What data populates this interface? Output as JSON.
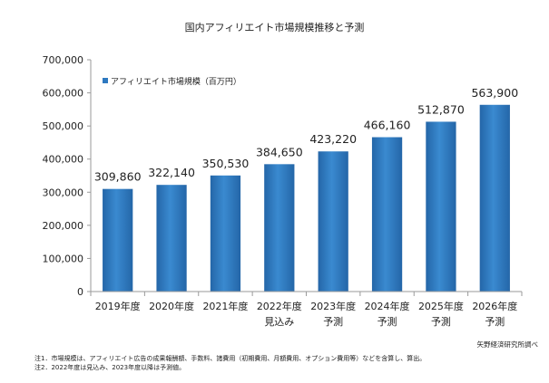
{
  "chart_data": {
    "type": "bar",
    "title": "国内アフィリエイト市場規模推移と予測",
    "series": [
      {
        "name": "アフィリエイト市場規模（百万円）",
        "values": [
          309860,
          322140,
          350530,
          384650,
          423220,
          466160,
          512870,
          563900
        ],
        "color": "#2e79c0"
      }
    ],
    "categories": [
      {
        "line1": "2019年度",
        "line2": ""
      },
      {
        "line1": "2020年度",
        "line2": ""
      },
      {
        "line1": "2021年度",
        "line2": ""
      },
      {
        "line1": "2022年度",
        "line2": "見込み"
      },
      {
        "line1": "2023年度",
        "line2": "予測"
      },
      {
        "line1": "2024年度",
        "line2": "予測"
      },
      {
        "line1": "2025年度",
        "line2": "予測"
      },
      {
        "line1": "2026年度",
        "line2": "予測"
      }
    ],
    "data_labels": [
      "309,860",
      "322,140",
      "350,530",
      "384,650",
      "423,220",
      "466,160",
      "512,870",
      "563,900"
    ],
    "y_ticks": [
      0,
      100000,
      200000,
      300000,
      400000,
      500000,
      600000,
      700000
    ],
    "y_tick_labels": [
      "0",
      "100,000",
      "200,000",
      "300,000",
      "400,000",
      "500,000",
      "600,000",
      "700,000"
    ],
    "ylim": [
      0,
      700000
    ],
    "legend_position": "top-left",
    "xlabel": "",
    "ylabel": "",
    "grid": false
  },
  "source": "矢野経済研究所調べ",
  "notes": [
    "注1．市場規模は、アフィリエイト広告の成果報酬額、手数料、諸費用（初期費用、月額費用、オプション費用等）などを含算し、算出。",
    "注2．2022年度は見込み、2023年度以降は予測値。"
  ]
}
